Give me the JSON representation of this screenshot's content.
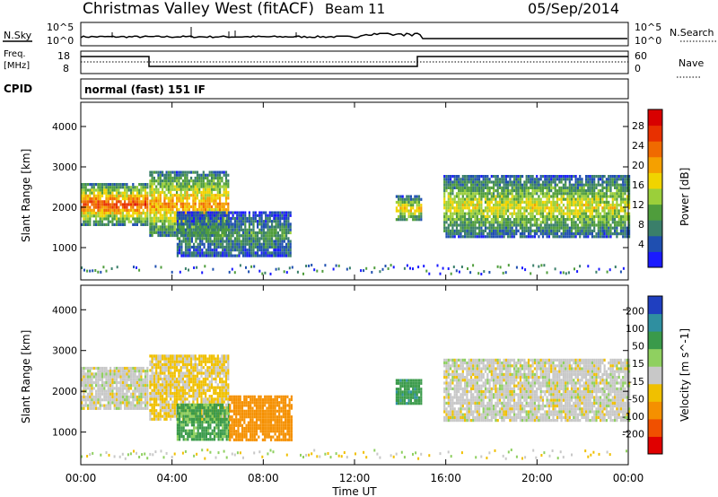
{
  "header": {
    "station": "Christmas Valley West (fitACF)",
    "beam": "Beam 11",
    "date": "05/Sep/2014"
  },
  "noise_panel": {
    "left_label": "N.Sky",
    "right_label": "N.Search",
    "left_ticks": [
      "10^5",
      "10^0"
    ],
    "right_ticks": [
      "10^5",
      "10^0"
    ]
  },
  "freq_panel": {
    "left_label_1": "Freq.",
    "left_label_2": "[MHz]",
    "left_ticks": [
      "18",
      "8"
    ],
    "right_label": "Nave",
    "right_ticks": [
      "60",
      "0"
    ]
  },
  "cpid_panel": {
    "label": "CPID",
    "text": "normal (fast) 151 IF"
  },
  "chart_data": [
    {
      "type": "heatmap",
      "title": "Power",
      "ylabel": "Slant Range [km]",
      "xlabel": "Time UT",
      "x_ticks": [
        "00:00",
        "04:00",
        "08:00",
        "12:00",
        "16:00",
        "20:00",
        "00:00"
      ],
      "y_ticks": [
        "1000",
        "2000",
        "3000",
        "4000"
      ],
      "ylim": [
        200,
        4600
      ],
      "colorbar": {
        "label": "Power [dB]",
        "ticks": [
          "4",
          "8",
          "12",
          "16",
          "20",
          "24",
          "28"
        ],
        "colors": [
          "#1a1aff",
          "#1f4fb0",
          "#3a7f6a",
          "#4f9d3c",
          "#9bcf3a",
          "#f0d400",
          "#f5a000",
          "#f06a00",
          "#e83000",
          "#d80000"
        ]
      },
      "regions": [
        {
          "t_start": 0.0,
          "t_end": 2.9,
          "range_low": 1600,
          "range_high": 2600,
          "power": 26
        },
        {
          "t_start": 3.0,
          "t_end": 6.5,
          "range_low": 1300,
          "range_high": 2900,
          "power": 22
        },
        {
          "t_start": 4.2,
          "t_end": 9.2,
          "range_low": 800,
          "range_high": 1900,
          "power": 12
        },
        {
          "t_start": 13.8,
          "t_end": 14.9,
          "range_low": 1700,
          "range_high": 2300,
          "power": 20
        },
        {
          "t_start": 15.9,
          "t_end": 24.0,
          "range_low": 1300,
          "range_high": 2800,
          "power": 18
        }
      ]
    },
    {
      "type": "heatmap",
      "title": "Velocity",
      "ylabel": "Slant Range [km]",
      "xlabel": "Time UT",
      "x_ticks": [
        "00:00",
        "04:00",
        "08:00",
        "12:00",
        "16:00",
        "20:00",
        "00:00"
      ],
      "y_ticks": [
        "1000",
        "2000",
        "3000",
        "4000"
      ],
      "ylim": [
        200,
        4600
      ],
      "colorbar": {
        "label": "Velocity [m s^-1]",
        "ticks": [
          "200",
          "100",
          "50",
          "15",
          "-15",
          "-50",
          "-100",
          "-200"
        ],
        "colors": [
          "#1f3fc0",
          "#2f8fa0",
          "#3a9a4a",
          "#8fd060",
          "#c8c8c8",
          "#f0c000",
          "#f59000",
          "#f05000",
          "#e00000"
        ]
      },
      "regions": [
        {
          "t_start": 0.0,
          "t_end": 2.9,
          "range_low": 1600,
          "range_high": 2600,
          "velocity": 0
        },
        {
          "t_start": 3.0,
          "t_end": 6.5,
          "range_low": 1300,
          "range_high": 2900,
          "velocity": -20
        },
        {
          "t_start": 4.2,
          "t_end": 6.5,
          "range_low": 800,
          "range_high": 1700,
          "velocity": 40
        },
        {
          "t_start": 6.5,
          "t_end": 9.2,
          "range_low": 800,
          "range_high": 1900,
          "velocity": -80
        },
        {
          "t_start": 13.8,
          "t_end": 14.9,
          "range_low": 1700,
          "range_high": 2300,
          "velocity": 60
        },
        {
          "t_start": 15.9,
          "t_end": 24.0,
          "range_low": 1300,
          "range_high": 2800,
          "velocity": 0
        }
      ]
    }
  ]
}
